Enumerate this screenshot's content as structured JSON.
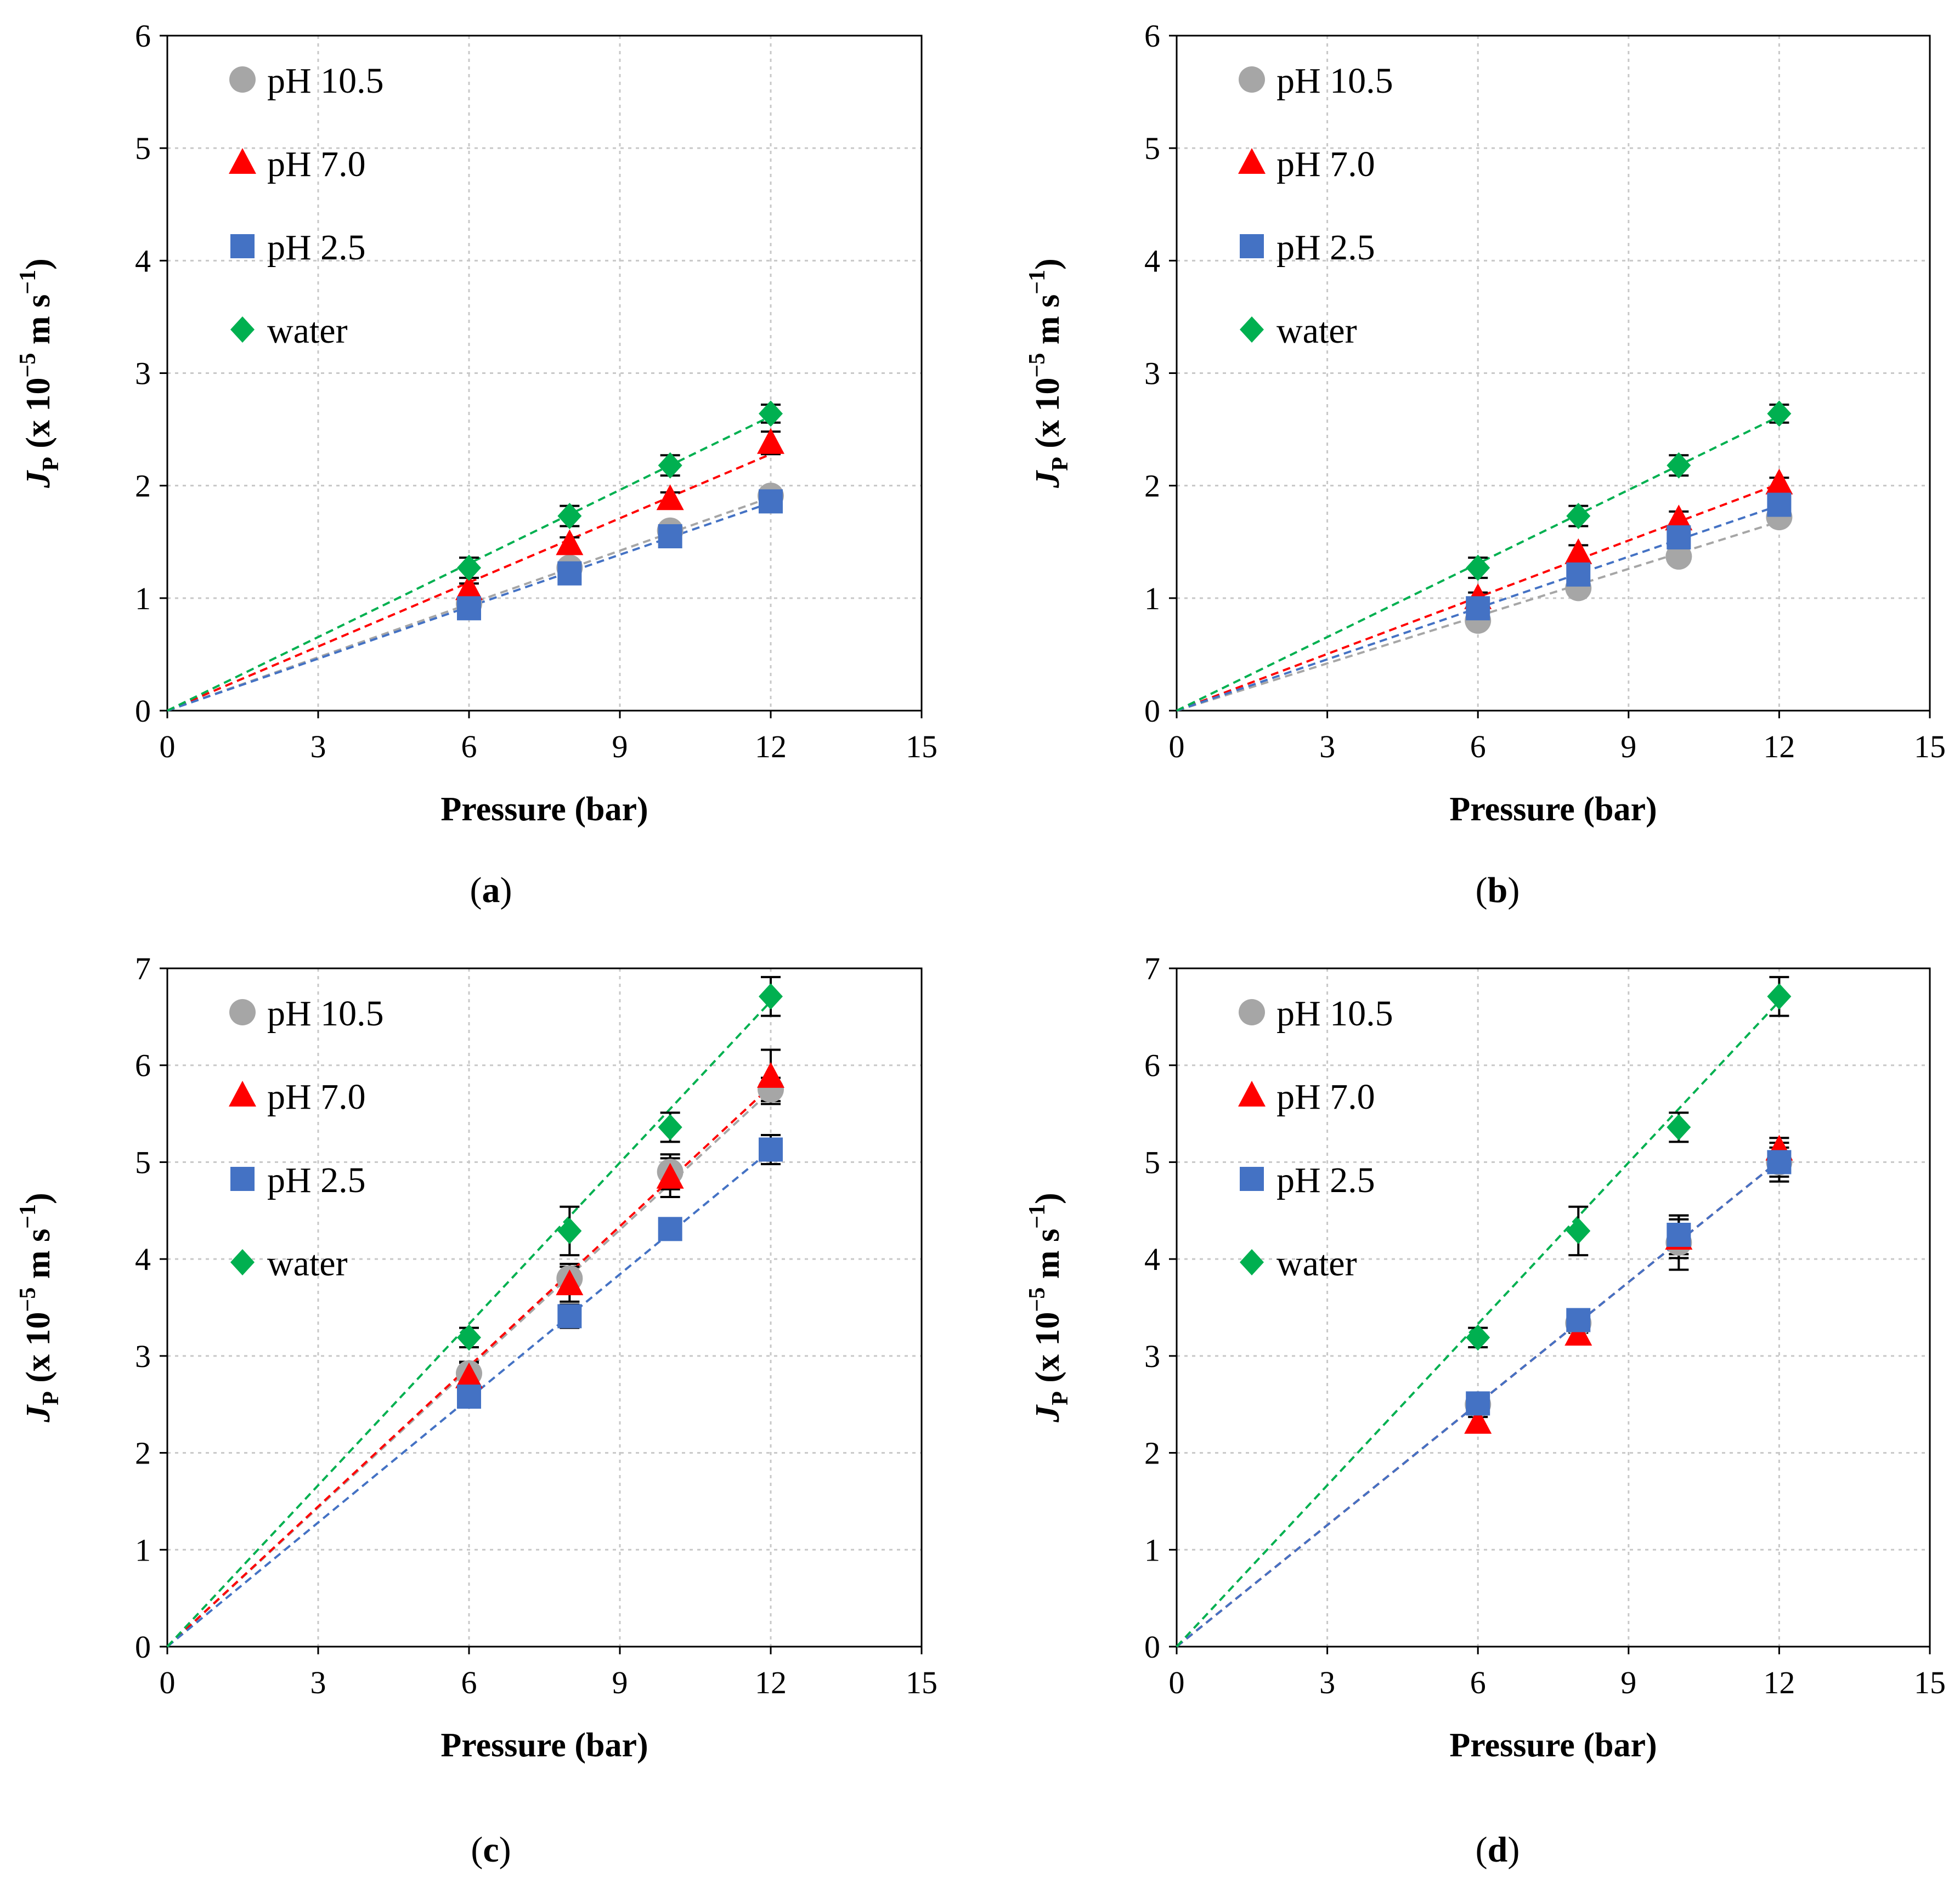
{
  "colors": {
    "pH 10.5": "#a6a6a6",
    "pH 7.0": "#ff0000",
    "pH 2.5": "#4472c4",
    "water": "#00b050"
  },
  "chart_data": [
    {
      "type": "scatter",
      "panel": "a",
      "caption_prefix": "(",
      "caption_letter": "a",
      "caption_suffix": ")",
      "xlabel": "Pressure (bar)",
      "ylabel_main": "J",
      "ylabel_sub": "P",
      "ylabel_pre": " (x 10",
      "ylabel_exp1": "−5",
      "ylabel_mid": " m s",
      "ylabel_exp2": "−1",
      "ylabel_post": ")",
      "xlim": [
        0,
        15
      ],
      "ylim": [
        0,
        6
      ],
      "xticks": [
        "0",
        "3",
        "6",
        "9",
        "12",
        "15"
      ],
      "yticks": [
        "0",
        "1",
        "2",
        "3",
        "4",
        "5",
        "6"
      ],
      "grid": true,
      "legend": "top-left",
      "series": [
        {
          "name": "pH 10.5",
          "marker": "circle",
          "x": [
            6,
            8,
            10,
            12
          ],
          "y": [
            0.95,
            1.27,
            1.6,
            1.91
          ],
          "err": [
            0.05,
            0.05,
            0.05,
            0.05
          ],
          "slope": 0.158
        },
        {
          "name": "pH 7.0",
          "marker": "triangle",
          "x": [
            6,
            8,
            10,
            12
          ],
          "y": [
            1.08,
            1.48,
            1.88,
            2.38
          ],
          "err": [
            0.05,
            0.06,
            0.06,
            0.1
          ],
          "slope": 0.19
        },
        {
          "name": "pH 2.5",
          "marker": "square",
          "x": [
            6,
            8,
            10,
            12
          ],
          "y": [
            0.91,
            1.22,
            1.55,
            1.86
          ],
          "err": [
            0.04,
            0.05,
            0.05,
            0.05
          ],
          "slope": 0.154
        },
        {
          "name": "water",
          "marker": "diamond",
          "x": [
            6,
            8,
            10,
            12
          ],
          "y": [
            1.27,
            1.73,
            2.18,
            2.64
          ],
          "err": [
            0.09,
            0.09,
            0.09,
            0.08
          ],
          "slope": 0.218
        }
      ]
    },
    {
      "type": "scatter",
      "panel": "b",
      "caption_prefix": "(",
      "caption_letter": "b",
      "caption_suffix": ")",
      "xlabel": "Pressure (bar)",
      "ylabel_main": "J",
      "ylabel_sub": "P",
      "ylabel_pre": " (x 10",
      "ylabel_exp1": "−5",
      "ylabel_mid": " m s",
      "ylabel_exp2": "−1",
      "ylabel_post": ")",
      "xlim": [
        0,
        15
      ],
      "ylim": [
        0,
        6
      ],
      "xticks": [
        "0",
        "3",
        "6",
        "9",
        "12",
        "15"
      ],
      "yticks": [
        "0",
        "1",
        "2",
        "3",
        "4",
        "5",
        "6"
      ],
      "grid": true,
      "legend": "top-left",
      "series": [
        {
          "name": "pH 10.5",
          "marker": "circle",
          "x": [
            6,
            8,
            10,
            12
          ],
          "y": [
            0.8,
            1.09,
            1.37,
            1.72
          ],
          "err": [
            0.05,
            0.05,
            0.05,
            0.05
          ],
          "slope": 0.14
        },
        {
          "name": "pH 7.0",
          "marker": "triangle",
          "x": [
            6,
            8,
            10,
            12
          ],
          "y": [
            1.0,
            1.4,
            1.7,
            2.02
          ],
          "err": [
            0.05,
            0.07,
            0.07,
            0.05
          ],
          "slope": 0.168
        },
        {
          "name": "pH 2.5",
          "marker": "square",
          "x": [
            6,
            8,
            10,
            12
          ],
          "y": [
            0.91,
            1.21,
            1.54,
            1.83
          ],
          "err": [
            0.05,
            0.05,
            0.05,
            0.05
          ],
          "slope": 0.152
        },
        {
          "name": "water",
          "marker": "diamond",
          "x": [
            6,
            8,
            10,
            12
          ],
          "y": [
            1.27,
            1.73,
            2.18,
            2.64
          ],
          "err": [
            0.09,
            0.09,
            0.09,
            0.08
          ],
          "slope": 0.218
        }
      ]
    },
    {
      "type": "scatter",
      "panel": "c",
      "caption_prefix": "(",
      "caption_letter": "c",
      "caption_suffix": ")",
      "xlabel": "Pressure (bar)",
      "ylabel_main": "J",
      "ylabel_sub": "P",
      "ylabel_pre": " (x 10",
      "ylabel_exp1": "−5",
      "ylabel_mid": " m s",
      "ylabel_exp2": "−1",
      "ylabel_post": ")",
      "xlim": [
        0,
        15
      ],
      "ylim": [
        0,
        7
      ],
      "xticks": [
        "0",
        "3",
        "6",
        "9",
        "12",
        "15"
      ],
      "yticks": [
        "0",
        "1",
        "2",
        "3",
        "4",
        "5",
        "6",
        "7"
      ],
      "grid": true,
      "legend": "top-left",
      "series": [
        {
          "name": "pH 10.5",
          "marker": "circle",
          "x": [
            6,
            8,
            10,
            12
          ],
          "y": [
            2.82,
            3.8,
            4.9,
            5.75
          ],
          "err": [
            0.12,
            0.15,
            0.18,
            0.12
          ],
          "slope": 0.478
        },
        {
          "name": "pH 7.0",
          "marker": "triangle",
          "x": [
            6,
            8,
            10,
            12
          ],
          "y": [
            2.78,
            3.74,
            4.84,
            5.88
          ],
          "err": [
            0.15,
            0.18,
            0.2,
            0.28
          ],
          "slope": 0.482
        },
        {
          "name": "pH 2.5",
          "marker": "square",
          "x": [
            6,
            8,
            10,
            12
          ],
          "y": [
            2.58,
            3.41,
            4.31,
            5.13
          ],
          "err": [
            0.08,
            0.12,
            0.08,
            0.15
          ],
          "slope": 0.427
        },
        {
          "name": "water",
          "marker": "diamond",
          "x": [
            6,
            8,
            10,
            12
          ],
          "y": [
            3.19,
            4.29,
            5.36,
            6.71
          ],
          "err": [
            0.1,
            0.25,
            0.15,
            0.2
          ],
          "slope": 0.555
        }
      ]
    },
    {
      "type": "scatter",
      "panel": "d",
      "caption_prefix": "(",
      "caption_letter": "d",
      "caption_suffix": ")",
      "xlabel": "Pressure (bar)",
      "ylabel_main": "J",
      "ylabel_sub": "P",
      "ylabel_pre": " (x 10",
      "ylabel_exp1": "−5",
      "ylabel_mid": " m s",
      "ylabel_exp2": "−1",
      "ylabel_post": ")",
      "xlim": [
        0,
        15
      ],
      "ylim": [
        0,
        7
      ],
      "xticks": [
        "0",
        "3",
        "6",
        "9",
        "12",
        "15"
      ],
      "yticks": [
        "0",
        "1",
        "2",
        "3",
        "4",
        "5",
        "6",
        "7"
      ],
      "grid": true,
      "legend": "top-left",
      "series": [
        {
          "name": "pH 10.5",
          "marker": "circle",
          "x": [
            6,
            8,
            10,
            12
          ],
          "y": [
            2.5,
            3.34,
            4.17,
            5.0
          ],
          "err": [
            0.08,
            0.1,
            0.28,
            0.2
          ],
          "slope": 0.418
        },
        {
          "name": "pH 7.0",
          "marker": "triangle",
          "x": [
            6,
            8,
            10,
            12
          ],
          "y": [
            2.31,
            3.22,
            4.21,
            5.13
          ],
          "err": [
            0.06,
            0.08,
            0.2,
            0.12
          ],
          "slope": 0.418
        },
        {
          "name": "pH 2.5",
          "marker": "square",
          "x": [
            6,
            8,
            10,
            12
          ],
          "y": [
            2.51,
            3.37,
            4.25,
            5.0
          ],
          "err": [
            0.08,
            0.1,
            0.2,
            0.15
          ],
          "slope": 0.418
        },
        {
          "name": "water",
          "marker": "diamond",
          "x": [
            6,
            8,
            10,
            12
          ],
          "y": [
            3.19,
            4.29,
            5.36,
            6.71
          ],
          "err": [
            0.1,
            0.25,
            0.15,
            0.2
          ],
          "slope": 0.555
        }
      ]
    }
  ]
}
